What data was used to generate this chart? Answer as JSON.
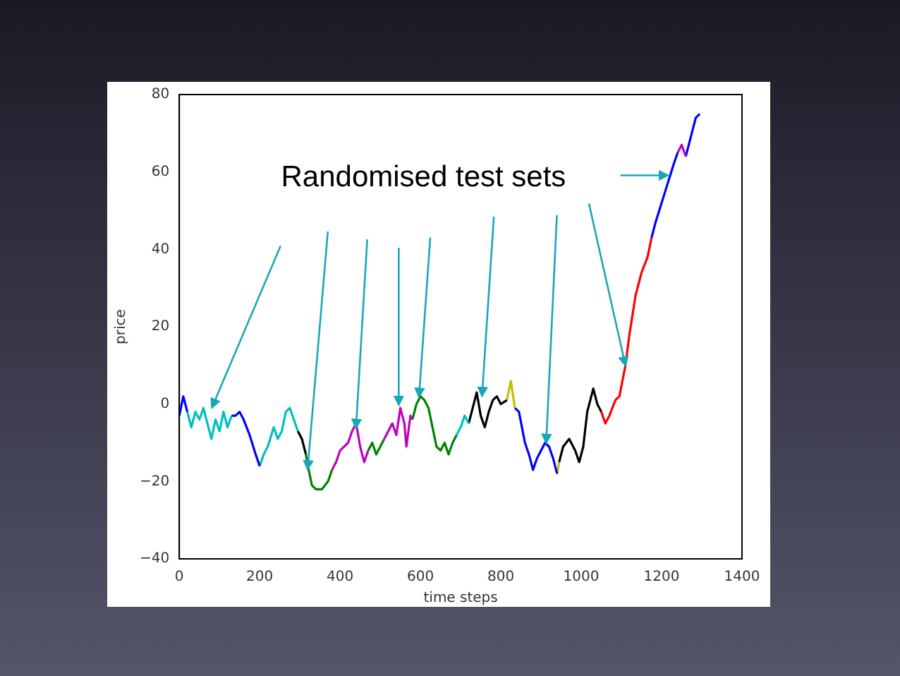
{
  "chart_data": {
    "type": "line",
    "xlabel": "time steps",
    "ylabel": "price",
    "xlim": [
      0,
      1400
    ],
    "xticks": [
      0,
      200,
      400,
      600,
      800,
      1000,
      1200,
      1400
    ],
    "ylim": [
      -40,
      80
    ],
    "yticks": [
      -40,
      -20,
      0,
      20,
      40,
      60,
      80
    ],
    "grid": false,
    "legend": false,
    "annotations": [
      {
        "text": "Randomised test sets",
        "x": 1110,
        "y": 10
      }
    ],
    "series": [
      {
        "color": "#0000ff",
        "x": [
          0,
          10,
          20
        ],
        "values": [
          -3,
          2,
          -2
        ]
      },
      {
        "color": "#00bfbf",
        "x": [
          20,
          30,
          40,
          50,
          60,
          70,
          80,
          90,
          100,
          110,
          120,
          130
        ],
        "values": [
          -2,
          -6,
          -2,
          -4,
          -1,
          -5,
          -9,
          -4,
          -7,
          -2,
          -6,
          -3
        ]
      },
      {
        "color": "#0000ff",
        "x": [
          130,
          140,
          150,
          160,
          175,
          190,
          200
        ],
        "values": [
          -3,
          -3,
          -2,
          -4,
          -8,
          -13,
          -16
        ]
      },
      {
        "color": "#00bfbf",
        "x": [
          200,
          210,
          220,
          235,
          245,
          255,
          265,
          275,
          285,
          295
        ],
        "values": [
          -16,
          -13,
          -11,
          -6,
          -9,
          -7,
          -2,
          -1,
          -4,
          -7
        ]
      },
      {
        "color": "#000000",
        "x": [
          295,
          305,
          315
        ],
        "values": [
          -7,
          -9,
          -13
        ]
      },
      {
        "color": "#008000",
        "x": [
          315,
          320,
          330,
          340,
          355,
          370,
          380
        ],
        "values": [
          -13,
          -16,
          -21,
          -22,
          -22,
          -20,
          -17
        ]
      },
      {
        "color": "#bf00bf",
        "x": [
          380,
          390,
          400,
          410,
          420,
          430,
          440,
          450,
          460,
          470
        ],
        "values": [
          -17,
          -15,
          -12,
          -11,
          -10,
          -7,
          -5,
          -11,
          -15,
          -12
        ]
      },
      {
        "color": "#008000",
        "x": [
          470,
          480,
          490,
          500,
          510
        ],
        "values": [
          -12,
          -10,
          -13,
          -11,
          -9
        ]
      },
      {
        "color": "#bf00bf",
        "x": [
          510,
          520,
          530,
          540,
          550,
          560,
          565,
          575,
          580
        ],
        "values": [
          -9,
          -7,
          -5,
          -8,
          -1,
          -5,
          -11,
          -3,
          -4
        ]
      },
      {
        "color": "#008000",
        "x": [
          580,
          590,
          600,
          610,
          620,
          630,
          640,
          650,
          660,
          670,
          680,
          690
        ],
        "values": [
          -4,
          0,
          2,
          1,
          -1,
          -6,
          -11,
          -12,
          -10,
          -13,
          -10,
          -8
        ]
      },
      {
        "color": "#00bfbf",
        "x": [
          690,
          700,
          710,
          720
        ],
        "values": [
          -8,
          -6,
          -3,
          -5
        ]
      },
      {
        "color": "#000000",
        "x": [
          720,
          730,
          740,
          750,
          760,
          770,
          780,
          790,
          800,
          815
        ],
        "values": [
          -5,
          -1,
          3,
          -3,
          -6,
          -2,
          1,
          2,
          0,
          1
        ]
      },
      {
        "color": "#bfbf00",
        "x": [
          815,
          825,
          835
        ],
        "values": [
          1,
          6,
          -1
        ]
      },
      {
        "color": "#0000ff",
        "x": [
          835,
          845,
          860,
          870,
          880,
          890,
          900,
          910,
          920,
          930,
          940
        ],
        "values": [
          -1,
          -2,
          -10,
          -13,
          -17,
          -14,
          -12,
          -10,
          -11,
          -14,
          -18
        ]
      },
      {
        "color": "#bfbf00",
        "x": [
          940,
          945
        ],
        "values": [
          -18,
          -15
        ]
      },
      {
        "color": "#000000",
        "x": [
          945,
          955,
          970,
          985,
          995,
          1005,
          1015,
          1030,
          1040,
          1050
        ],
        "values": [
          -15,
          -11,
          -9,
          -12,
          -15,
          -11,
          -2,
          4,
          0,
          -2
        ]
      },
      {
        "color": "#ff0000",
        "x": [
          1050,
          1060,
          1070,
          1085,
          1095,
          1110,
          1120,
          1135,
          1150,
          1165,
          1175
        ],
        "values": [
          -2,
          -5,
          -3,
          1,
          2,
          10,
          18,
          28,
          34,
          38,
          43
        ]
      },
      {
        "color": "#0000ff",
        "x": [
          1175,
          1185,
          1200,
          1215,
          1230,
          1240
        ],
        "values": [
          43,
          47,
          52,
          57,
          62,
          65
        ]
      },
      {
        "color": "#bf00bf",
        "x": [
          1240,
          1250,
          1260
        ],
        "values": [
          65,
          67,
          64
        ]
      },
      {
        "color": "#0000ff",
        "x": [
          1260,
          1275,
          1285,
          1295
        ],
        "values": [
          64,
          70,
          74,
          75
        ]
      }
    ]
  }
}
